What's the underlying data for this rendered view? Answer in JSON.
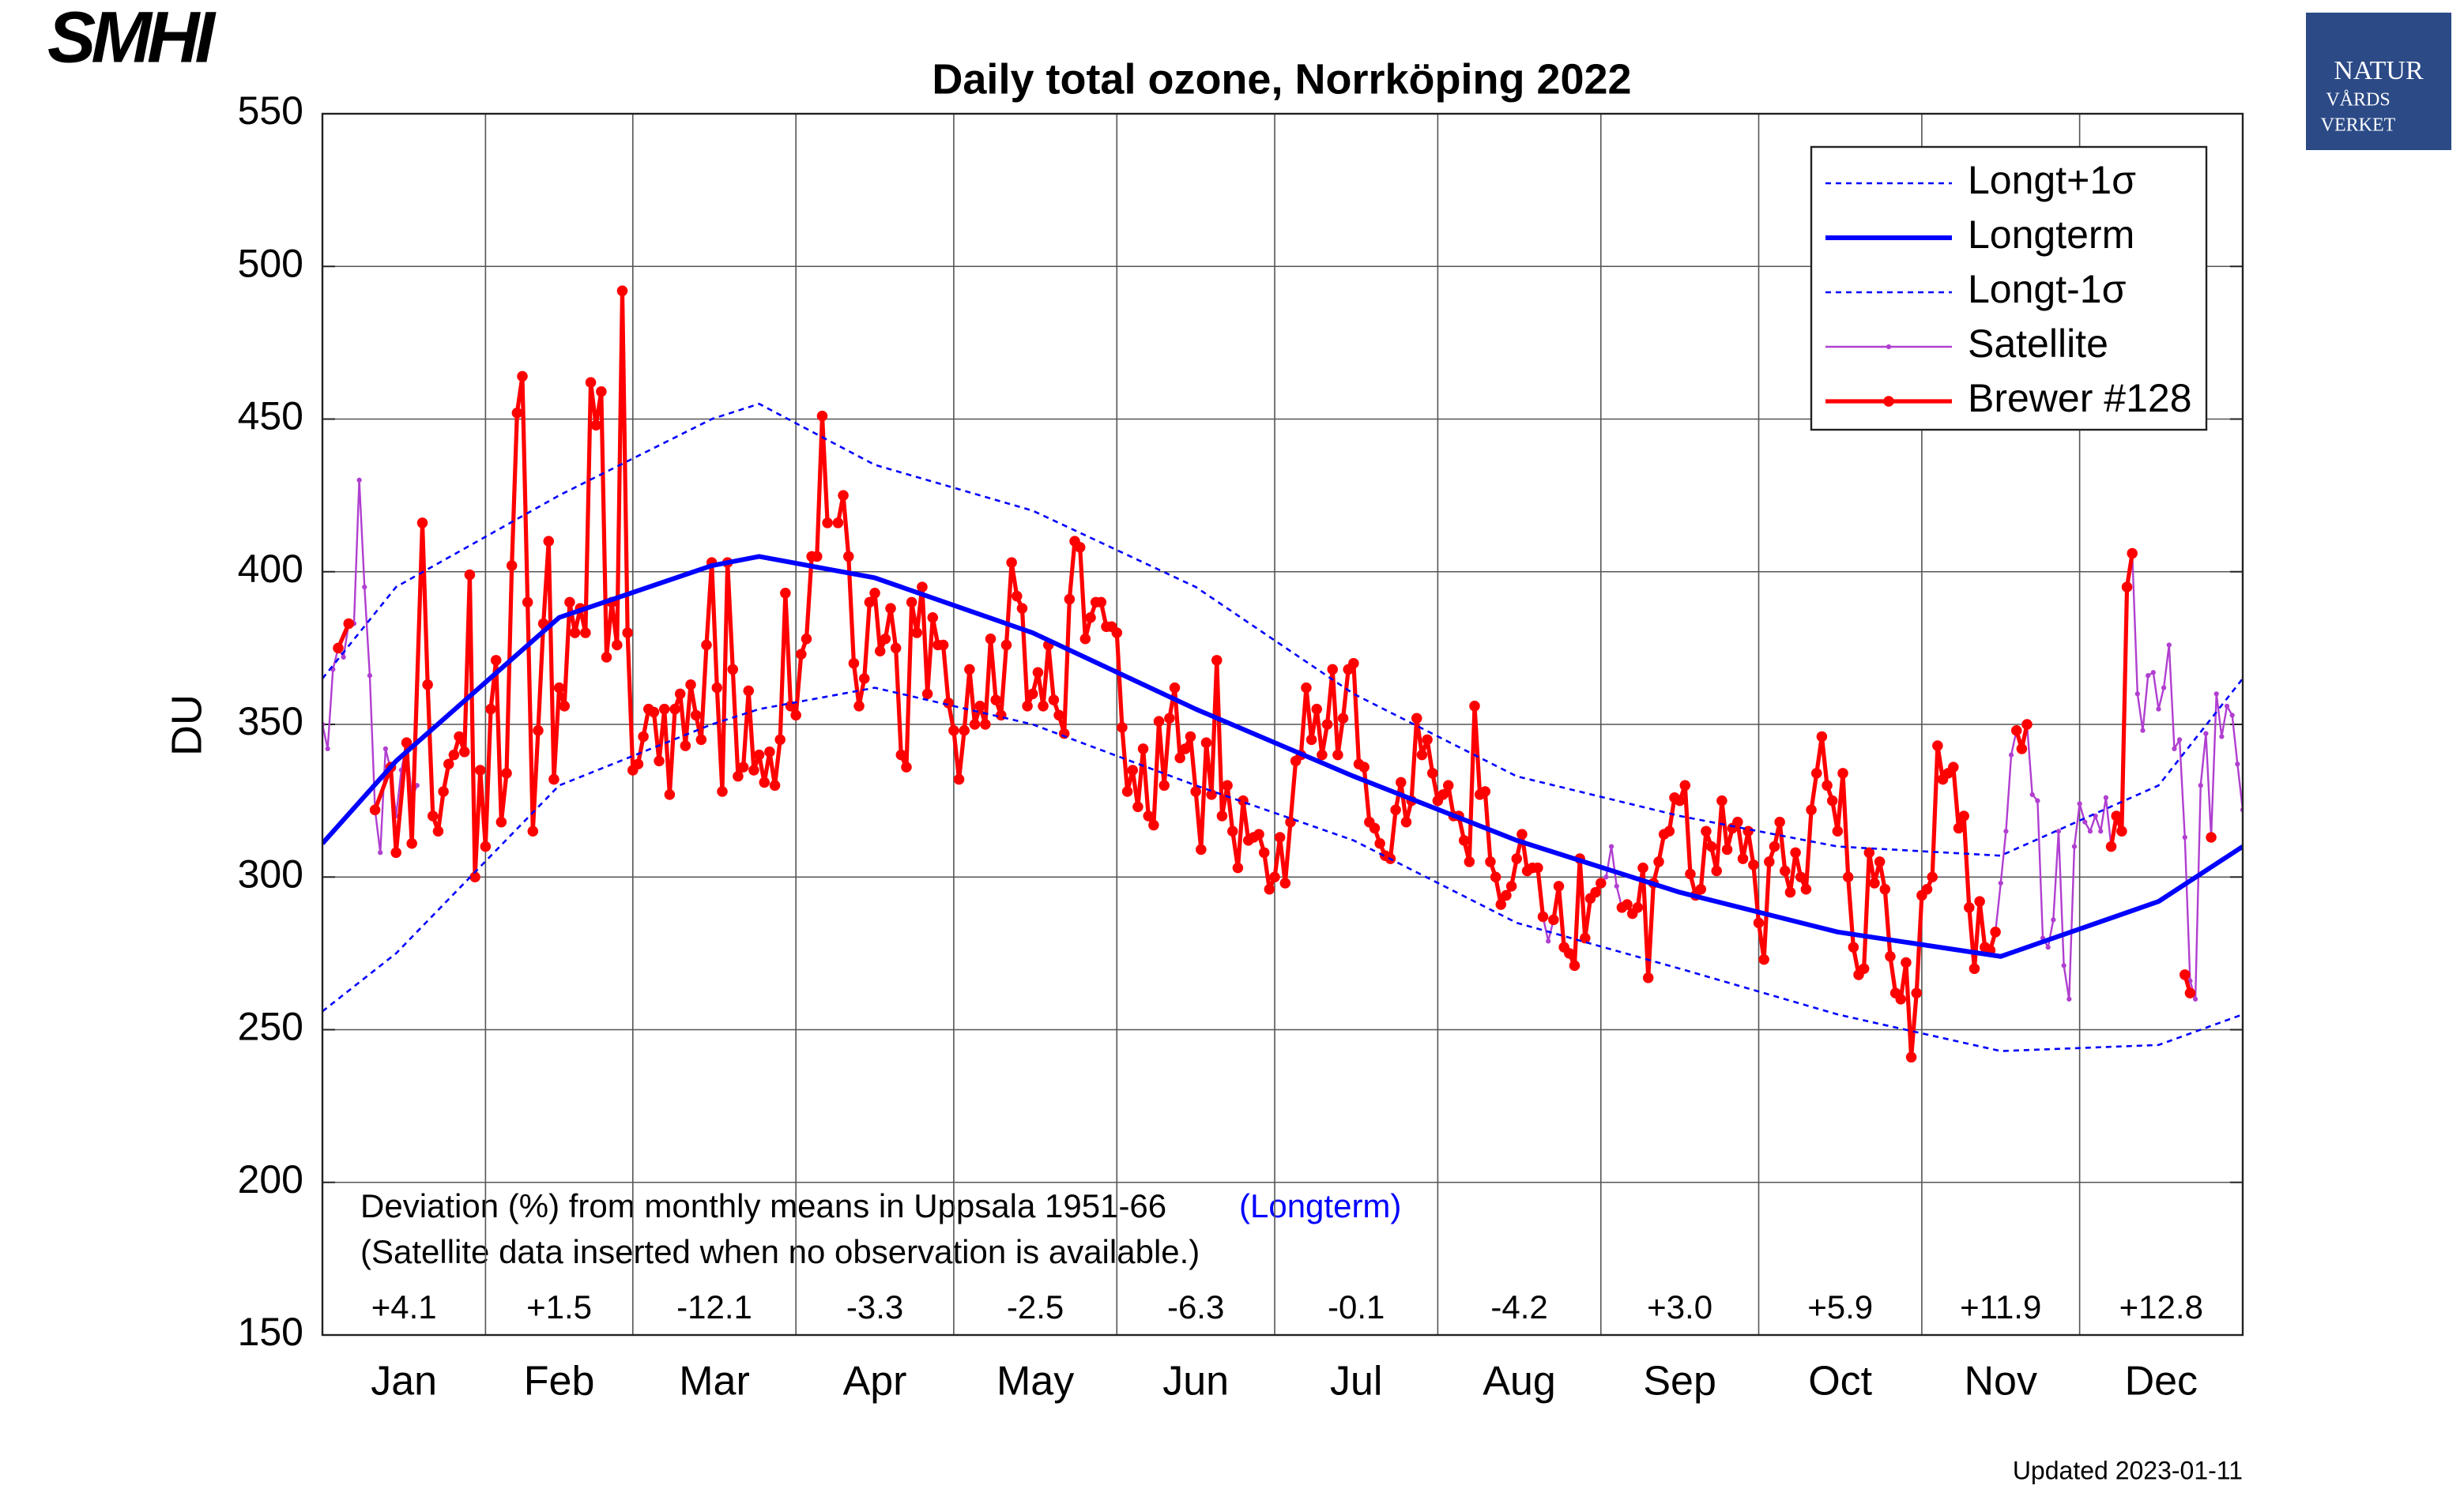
{
  "chart_data": {
    "type": "line",
    "title": "Daily total ozone, Norrköping 2022",
    "ylabel": "DU",
    "logo_left": "SMHI",
    "logo_right": [
      "NATUR",
      "VÅRDS",
      "VERKET"
    ],
    "updated": "Updated 2023-01-11",
    "notes": [
      "Deviation (%) from monthly means in Uppsala 1951-66",
      "(Longterm)",
      "(Satellite data inserted when no observation is available.)"
    ],
    "deviations": [
      "+4.1",
      "+1.5",
      "-12.1",
      "-3.3",
      "-2.5",
      "-6.3",
      "-0.1",
      "-4.2",
      "+3.0",
      "+5.9",
      "+11.9",
      "+12.8"
    ],
    "xlim": [
      0,
      365
    ],
    "xticks": [
      {
        "value": 15.5,
        "label": "Jan"
      },
      {
        "value": 45,
        "label": "Feb"
      },
      {
        "value": 74.5,
        "label": "Mar"
      },
      {
        "value": 105,
        "label": "Apr"
      },
      {
        "value": 135.5,
        "label": "May"
      },
      {
        "value": 166,
        "label": "Jun"
      },
      {
        "value": 196.5,
        "label": "Jul"
      },
      {
        "value": 227.5,
        "label": "Aug"
      },
      {
        "value": 258,
        "label": "Sep"
      },
      {
        "value": 288.5,
        "label": "Oct"
      },
      {
        "value": 319,
        "label": "Nov"
      },
      {
        "value": 349.5,
        "label": "Dec"
      }
    ],
    "xgrid": [
      31,
      59,
      90,
      120,
      151,
      181,
      212,
      243,
      273,
      304,
      334
    ],
    "ylim": [
      150,
      550
    ],
    "yticks": [
      150,
      200,
      250,
      300,
      350,
      400,
      450,
      500,
      550
    ],
    "grid": true,
    "legend": "upper right",
    "series": [
      {
        "name": "Longt+1σ",
        "color": "#0000ff",
        "line_style": "dashed",
        "linewidth": 1.3,
        "marker": false,
        "x": [
          0,
          14,
          45,
          74,
          83,
          105,
          135,
          166,
          196,
          227,
          258,
          288,
          319,
          349,
          365
        ],
        "values": [
          365,
          395,
          425,
          450,
          455,
          435,
          420,
          395,
          360,
          333,
          320,
          310,
          307,
          330,
          365
        ]
      },
      {
        "name": "Longterm",
        "color": "#0000ff",
        "line_style": "solid",
        "linewidth": 3,
        "marker": false,
        "x": [
          0,
          14,
          45,
          74,
          83,
          105,
          135,
          166,
          196,
          227,
          258,
          288,
          319,
          349,
          365
        ],
        "values": [
          311,
          338,
          385,
          402,
          405,
          398,
          380,
          355,
          333,
          312,
          295,
          282,
          274,
          292,
          310
        ]
      },
      {
        "name": "Longt-1σ",
        "color": "#0000ff",
        "line_style": "dashed",
        "linewidth": 1.3,
        "marker": false,
        "x": [
          0,
          14,
          45,
          74,
          83,
          105,
          135,
          166,
          196,
          227,
          258,
          288,
          319,
          349,
          365
        ],
        "values": [
          256,
          275,
          330,
          350,
          355,
          362,
          350,
          330,
          312,
          285,
          270,
          255,
          243,
          245,
          255
        ]
      },
      {
        "name": "Satellite",
        "color": "#b03fd0",
        "line_style": "solid",
        "linewidth": 1.2,
        "marker": true,
        "x": [
          0,
          1,
          2,
          3,
          4,
          5,
          6,
          7,
          8,
          9,
          10,
          11,
          12,
          13,
          14,
          15,
          16,
          17,
          18,
          19,
          232,
          233,
          234,
          235,
          243,
          244,
          245,
          246,
          247,
          248,
          318,
          319,
          320,
          321,
          322,
          323,
          324,
          325,
          326,
          327,
          328,
          329,
          330,
          331,
          332,
          333,
          334,
          335,
          336,
          337,
          338,
          339,
          340,
          341,
          344,
          345,
          346,
          347,
          348,
          349,
          350,
          351,
          352,
          353,
          354,
          355,
          356,
          357,
          358,
          359,
          360,
          361,
          362,
          363,
          364,
          365
        ],
        "values": [
          350,
          342,
          368,
          375,
          372,
          383,
          383,
          430,
          395,
          366,
          322,
          308,
          342,
          335,
          320,
          335,
          344,
          326,
          330,
          null,
          287,
          279,
          286,
          null,
          298,
          300,
          310,
          297,
          290,
          null,
          282,
          298,
          315,
          340,
          348,
          null,
          350,
          327,
          325,
          280,
          277,
          286,
          315,
          271,
          260,
          310,
          324,
          318,
          315,
          320,
          315,
          326,
          310,
          null,
          406,
          360,
          348,
          366,
          367,
          355,
          362,
          376,
          342,
          345,
          313,
          266,
          260,
          330,
          347,
          313,
          360,
          346,
          356,
          353,
          337,
          322
        ]
      },
      {
        "name": "Brewer #128",
        "color": "#ff0000",
        "line_style": "solid",
        "linewidth": 2.6,
        "marker": true,
        "x": [
          3,
          5,
          7,
          10,
          13,
          14,
          16,
          17,
          19,
          20,
          21,
          22,
          23,
          24,
          25,
          26,
          27,
          28,
          29,
          30,
          31,
          32,
          33,
          34,
          35,
          36,
          37,
          38,
          39,
          40,
          41,
          42,
          43,
          44,
          45,
          46,
          47,
          48,
          49,
          50,
          51,
          52,
          53,
          54,
          55,
          56,
          57,
          58,
          59,
          60,
          61,
          62,
          63,
          64,
          65,
          66,
          67,
          68,
          69,
          70,
          71,
          72,
          73,
          74,
          75,
          76,
          77,
          78,
          79,
          80,
          81,
          82,
          83,
          84,
          85,
          86,
          87,
          88,
          89,
          90,
          91,
          92,
          93,
          94,
          95,
          96,
          97,
          98,
          99,
          100,
          101,
          102,
          103,
          104,
          105,
          106,
          107,
          108,
          109,
          110,
          111,
          112,
          113,
          114,
          115,
          116,
          117,
          118,
          119,
          120,
          121,
          122,
          123,
          124,
          125,
          126,
          127,
          128,
          129,
          130,
          131,
          132,
          133,
          134,
          135,
          136,
          137,
          138,
          139,
          140,
          141,
          142,
          143,
          144,
          145,
          146,
          147,
          148,
          149,
          150,
          151,
          152,
          153,
          154,
          155,
          156,
          157,
          158,
          159,
          160,
          161,
          162,
          163,
          164,
          165,
          166,
          167,
          168,
          169,
          170,
          171,
          172,
          173,
          174,
          175,
          176,
          177,
          178,
          179,
          180,
          181,
          182,
          183,
          184,
          185,
          186,
          187,
          188,
          189,
          190,
          191,
          192,
          193,
          194,
          195,
          196,
          197,
          198,
          199,
          200,
          201,
          202,
          203,
          204,
          205,
          206,
          207,
          208,
          209,
          210,
          211,
          212,
          213,
          214,
          215,
          216,
          217,
          218,
          219,
          220,
          221,
          222,
          223,
          224,
          225,
          226,
          227,
          228,
          229,
          230,
          231,
          232,
          233,
          234,
          235,
          236,
          237,
          238,
          239,
          240,
          241,
          242,
          243,
          244,
          247,
          248,
          249,
          250,
          251,
          252,
          253,
          254,
          255,
          256,
          257,
          258,
          259,
          260,
          261,
          262,
          263,
          264,
          265,
          266,
          267,
          268,
          269,
          270,
          271,
          272,
          273,
          274,
          275,
          276,
          277,
          278,
          279,
          280,
          281,
          282,
          283,
          284,
          285,
          286,
          287,
          288,
          289,
          290,
          291,
          292,
          293,
          294,
          295,
          296,
          297,
          298,
          299,
          300,
          301,
          302,
          303,
          304,
          305,
          306,
          307,
          308,
          309,
          310,
          311,
          312,
          313,
          314,
          315,
          316,
          317,
          318,
          319,
          322,
          323,
          324,
          325,
          340,
          341,
          342,
          343,
          344,
          345,
          354,
          355,
          356,
          359
        ],
        "values": [
          375,
          383,
          null,
          322,
          336,
          308,
          344,
          311,
          416,
          363,
          320,
          315,
          328,
          337,
          340,
          346,
          341,
          399,
          300,
          335,
          310,
          355,
          371,
          318,
          334,
          402,
          452,
          464,
          390,
          315,
          348,
          383,
          410,
          332,
          362,
          356,
          390,
          380,
          388,
          380,
          462,
          448,
          459,
          372,
          390,
          376,
          492,
          380,
          335,
          337,
          346,
          355,
          354,
          338,
          355,
          327,
          355,
          360,
          343,
          363,
          353,
          345,
          376,
          403,
          362,
          328,
          403,
          368,
          333,
          336,
          361,
          335,
          340,
          331,
          341,
          330,
          345,
          393,
          356,
          353,
          373,
          378,
          405,
          405,
          451,
          416,
          null,
          416,
          425,
          405,
          370,
          356,
          365,
          390,
          393,
          374,
          378,
          388,
          375,
          340,
          336,
          390,
          380,
          395,
          360,
          385,
          376,
          376,
          357,
          348,
          332,
          348,
          368,
          350,
          356,
          350,
          378,
          358,
          353,
          376,
          403,
          392,
          388,
          356,
          360,
          367,
          356,
          376,
          358,
          353,
          347,
          391,
          410,
          408,
          378,
          385,
          390,
          390,
          382,
          382,
          380,
          349,
          328,
          335,
          323,
          342,
          320,
          317,
          351,
          330,
          352,
          362,
          339,
          342,
          346,
          328,
          309,
          344,
          327,
          371,
          320,
          330,
          315,
          303,
          325,
          312,
          313,
          314,
          308,
          296,
          300,
          313,
          298,
          318,
          338,
          340,
          362,
          345,
          355,
          340,
          350,
          368,
          340,
          352,
          368,
          370,
          337,
          336,
          318,
          316,
          311,
          307,
          306,
          322,
          331,
          318,
          325,
          352,
          340,
          345,
          334,
          325,
          327,
          330,
          320,
          320,
          312,
          305,
          356,
          327,
          328,
          305,
          300,
          291,
          294,
          297,
          306,
          314,
          302,
          303,
          303,
          287,
          null,
          286,
          297,
          277,
          275,
          271,
          306,
          280,
          293,
          295,
          298,
          null,
          290,
          291,
          288,
          290,
          303,
          267,
          298,
          305,
          314,
          315,
          326,
          325,
          330,
          301,
          294,
          296,
          315,
          310,
          302,
          325,
          309,
          316,
          318,
          306,
          315,
          304,
          285,
          273,
          305,
          310,
          318,
          302,
          295,
          308,
          300,
          296,
          322,
          334,
          346,
          330,
          325,
          315,
          334,
          300,
          277,
          268,
          270,
          308,
          298,
          305,
          296,
          274,
          262,
          260,
          272,
          241,
          262,
          294,
          296,
          300,
          343,
          332,
          334,
          336,
          316,
          320,
          290,
          270,
          292,
          277,
          276,
          282,
          null,
          348,
          342,
          350,
          null,
          310,
          320,
          315,
          395,
          406,
          null,
          268,
          262,
          null,
          313
        ]
      }
    ]
  }
}
